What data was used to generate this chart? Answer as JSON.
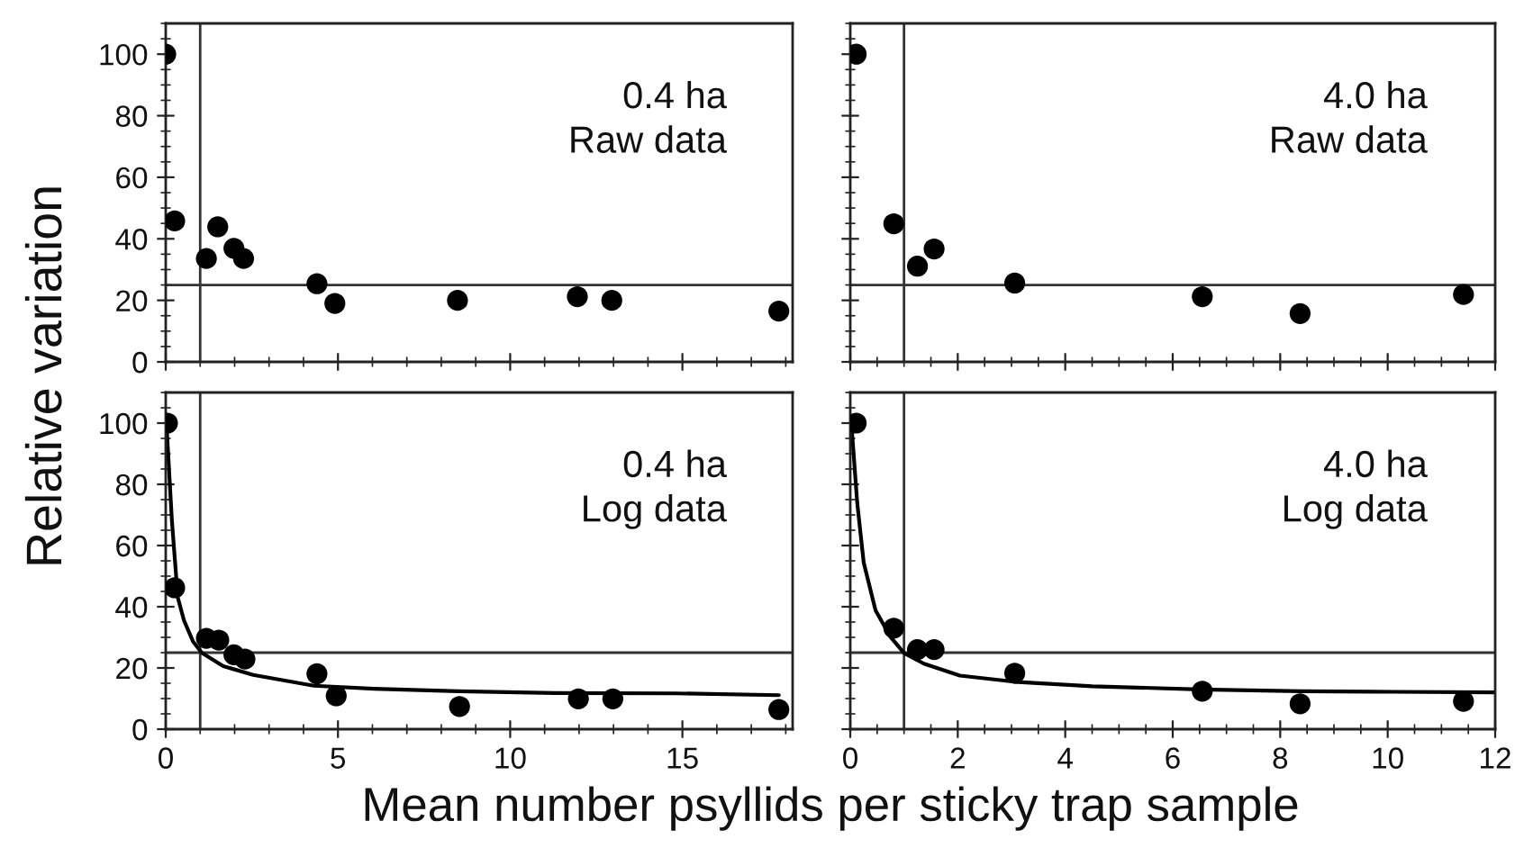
{
  "chart_data": [
    {
      "type": "scatter",
      "ylabel": "Relative variation",
      "annotations": [
        "0.4 ha\nRaw data"
      ],
      "xlim": [
        0,
        18.2
      ],
      "xticks": [
        0,
        5,
        10,
        15
      ],
      "ylim": [
        0,
        110
      ],
      "yticks": [
        0,
        20,
        40,
        60,
        80,
        100
      ],
      "tick_labels": "y",
      "ref_lines": [
        {
          "axis": "x",
          "value": 1,
          "color": "#333333"
        },
        {
          "axis": "y",
          "value": 25,
          "color": "#333333"
        }
      ],
      "series": [
        {
          "marker": "circle",
          "color": "#000000",
          "x": [
            0,
            0.26,
            1.18,
            1.51,
            1.98,
            2.26,
            4.39,
            4.91,
            8.47,
            11.95,
            12.95,
            17.8
          ],
          "values": [
            100,
            45.8,
            33.6,
            43.9,
            36.9,
            33.6,
            25.4,
            19,
            20,
            21.2,
            20,
            16.5
          ]
        }
      ]
    },
    {
      "type": "scatter",
      "annotations": [
        "4.0 ha\nRaw data"
      ],
      "xlim": [
        0,
        12
      ],
      "xticks": [
        0,
        2,
        4,
        6,
        8,
        10,
        12
      ],
      "ylim": [
        0,
        110
      ],
      "yticks": [
        0,
        20,
        40,
        60,
        80,
        100
      ],
      "tick_labels": false,
      "ref_lines": [
        {
          "axis": "x",
          "value": 1,
          "color": "#333333"
        },
        {
          "axis": "y",
          "value": 25,
          "color": "#333333"
        }
      ],
      "series": [
        {
          "marker": "circle",
          "color": "#000000",
          "x": [
            0.11,
            0.81,
            1.25,
            1.56,
            3.06,
            6.55,
            8.37,
            11.41
          ],
          "values": [
            100,
            44.9,
            31.1,
            36.7,
            25.6,
            21.2,
            15.7,
            21.9
          ]
        }
      ]
    },
    {
      "type": "scatter",
      "xlabel": "Mean number psyllids per sticky trap sample",
      "annotations": [
        "0.4 ha\nLog data"
      ],
      "xlim": [
        0,
        18.2
      ],
      "xticks": [
        0,
        5,
        10,
        15
      ],
      "ylim": [
        0,
        110
      ],
      "yticks": [
        0,
        20,
        40,
        60,
        80,
        100
      ],
      "ref_lines": [
        {
          "axis": "x",
          "value": 1,
          "color": "#333333"
        },
        {
          "axis": "y",
          "value": 25,
          "color": "#333333"
        }
      ],
      "series": [
        {
          "marker": "circle",
          "color": "#000000",
          "x": [
            0.05,
            0.26,
            1.18,
            1.54,
            1.98,
            2.3,
            4.39,
            4.95,
            8.53,
            11.98,
            12.98,
            17.8
          ],
          "values": [
            100,
            46.2,
            29.7,
            29.1,
            24.3,
            22.9,
            18.1,
            10.9,
            7.4,
            9.9,
            9.9,
            6.4
          ]
        },
        {
          "type": "line",
          "color": "#000000",
          "x": [
            0.02,
            0.18,
            0.35,
            0.53,
            0.79,
            1.05,
            1.67,
            2.54,
            4.3,
            6.05,
            8.5,
            11.3,
            14.8,
            17.8
          ],
          "values": [
            100,
            68,
            43,
            35.5,
            28.7,
            24.9,
            20.6,
            17.7,
            14.2,
            13.2,
            12.4,
            11.8,
            11.7,
            11.1
          ]
        }
      ]
    },
    {
      "type": "scatter",
      "annotations": [
        "4.0 ha\nLog data"
      ],
      "xlim": [
        0,
        12
      ],
      "xticks": [
        0,
        2,
        4,
        6,
        8,
        10,
        12
      ],
      "ylim": [
        0,
        110
      ],
      "yticks": [
        0,
        20,
        40,
        60,
        80,
        100
      ],
      "tick_labels": "x",
      "ref_lines": [
        {
          "axis": "x",
          "value": 1,
          "color": "#333333"
        },
        {
          "axis": "y",
          "value": 25,
          "color": "#333333"
        }
      ],
      "series": [
        {
          "marker": "circle",
          "color": "#000000",
          "x": [
            0.11,
            0.81,
            1.25,
            1.56,
            3.06,
            6.55,
            8.37,
            11.41
          ],
          "values": [
            100,
            33,
            26,
            26,
            18.3,
            12.4,
            8.3,
            9.1
          ]
        },
        {
          "type": "line",
          "color": "#000000",
          "x": [
            0.02,
            0.13,
            0.25,
            0.47,
            0.75,
            1.0,
            1.37,
            2.04,
            3.05,
            4.5,
            6.5,
            8.4,
            10.1,
            12.0
          ],
          "values": [
            100,
            73.8,
            54.4,
            38.8,
            30.1,
            24.9,
            21.4,
            17.5,
            15.5,
            14,
            13,
            12.4,
            12.2,
            12
          ]
        }
      ]
    }
  ]
}
